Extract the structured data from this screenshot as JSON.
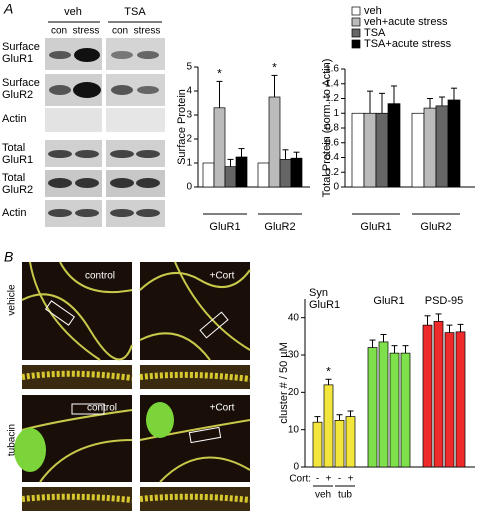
{
  "figure": {
    "panel_a": "A",
    "panel_b": "B",
    "blot": {
      "groups": [
        "veh",
        "TSA"
      ],
      "lanes": [
        "con",
        "stress",
        "con",
        "stress"
      ],
      "rows": [
        "Surface GluR1",
        "Surface GluR2",
        "Actin",
        "Total GluR1",
        "Total GluR2",
        "Actin"
      ]
    },
    "images": {
      "rows": [
        "vehicle",
        "tubacin"
      ],
      "labels": [
        "control",
        "+Cort",
        "control",
        "+Cort"
      ]
    }
  },
  "chart_data": [
    {
      "type": "bar",
      "ylabel": "Surface Protein",
      "categories": [
        "GluR1",
        "GluR2"
      ],
      "ylim": [
        0,
        5
      ],
      "yticks": [
        0,
        1,
        2,
        3,
        4,
        5
      ],
      "series": [
        {
          "name": "veh",
          "color": "#ffffff",
          "values": [
            1,
            1
          ]
        },
        {
          "name": "veh+acute stress",
          "color": "#bbbbbb",
          "values": [
            3.3,
            3.75
          ],
          "errors": [
            1.1,
            0.9
          ]
        },
        {
          "name": "TSA",
          "color": "#666666",
          "values": [
            0.85,
            1.15
          ],
          "errors": [
            0.3,
            0.4
          ]
        },
        {
          "name": "TSA+acute stress",
          "color": "#000000",
          "values": [
            1.25,
            1.2
          ],
          "errors": [
            0.35,
            0.25
          ]
        }
      ],
      "annotations": [
        {
          "series": 1,
          "index": 0,
          "text": "*"
        },
        {
          "series": 1,
          "index": 1,
          "text": "*"
        }
      ]
    },
    {
      "type": "bar",
      "ylabel": "Total Protein (norm. to Actin)",
      "categories": [
        "GluR1",
        "GluR2"
      ],
      "ylim": [
        0,
        1.6
      ],
      "yticks": [
        0,
        0.2,
        0.4,
        0.6,
        0.8,
        1,
        1.2,
        1.4,
        1.6
      ],
      "series": [
        {
          "color": "#ffffff",
          "values": [
            1,
            1
          ]
        },
        {
          "color": "#bbbbbb",
          "values": [
            1.0,
            1.07
          ],
          "errors": [
            0.3,
            0.13
          ]
        },
        {
          "color": "#666666",
          "values": [
            1.0,
            1.1
          ],
          "errors": [
            0.27,
            0.12
          ]
        },
        {
          "color": "#000000",
          "values": [
            1.13,
            1.18
          ],
          "errors": [
            0.24,
            0.16
          ]
        }
      ]
    },
    {
      "type": "bar",
      "ylabel": "cluster # / 50 µM",
      "x_prefix": "Cort:",
      "categories": [
        "-",
        "+",
        "-",
        "+"
      ],
      "groups": [
        "veh",
        "tub"
      ],
      "ylim": [
        0,
        45
      ],
      "yticks": [
        0,
        10,
        20,
        30,
        40
      ],
      "series": [
        {
          "name": "Syn GluR1",
          "color": "#f2e63c",
          "values": [
            12,
            22,
            12.5,
            13.5
          ],
          "errors": [
            1.5,
            1.5,
            1.5,
            1.5
          ]
        },
        {
          "name": "GluR1",
          "color": "#7ee04a",
          "values": [
            32,
            33.5,
            30.5,
            30.5
          ],
          "errors": [
            2,
            2,
            2,
            2
          ]
        },
        {
          "name": "PSD-95",
          "color": "#ee2a2a",
          "values": [
            38,
            39,
            36,
            36.2
          ],
          "errors": [
            2.5,
            2,
            2,
            2
          ]
        }
      ],
      "annotations": [
        {
          "series": 0,
          "index": 1,
          "text": "*"
        }
      ]
    }
  ]
}
